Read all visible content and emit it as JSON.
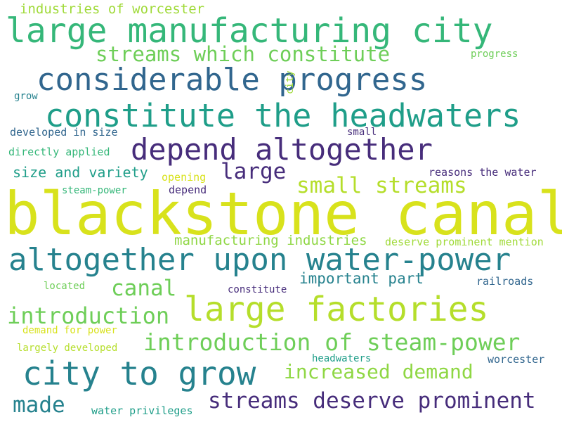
{
  "palette": {
    "dark_purple": "#472d7b",
    "deep_blue": "#31668e",
    "teal_blue": "#26828e",
    "teal": "#1f9e89",
    "green": "#35b779",
    "light_green": "#6ece58",
    "yellow_green": "#b5de2b",
    "yellow": "#d8e21c"
  },
  "words": [
    {
      "text": "blackstone canal",
      "color": "#d8e21c"
    },
    {
      "text": "large manufacturing city",
      "color": "#35b779"
    },
    {
      "text": "considerable progress",
      "color": "#31668e"
    },
    {
      "text": "constitute the headwaters",
      "color": "#1f9e89"
    },
    {
      "text": "depend altogether",
      "color": "#472d7b"
    },
    {
      "text": "altogether upon water-power",
      "color": "#26828e"
    },
    {
      "text": "large factories",
      "color": "#b5de2b"
    },
    {
      "text": "city to grow",
      "color": "#26828e"
    },
    {
      "text": "introduction of steam-power",
      "color": "#6ece58"
    },
    {
      "text": "streams deserve prominent",
      "color": "#472d7b"
    },
    {
      "text": "streams which constitute",
      "color": "#6ece58"
    },
    {
      "text": "introduction",
      "color": "#6ece58"
    },
    {
      "text": "small streams",
      "color": "#b5de2b"
    },
    {
      "text": "increased demand",
      "color": "#8fd744"
    },
    {
      "text": "large",
      "color": "#472d7b"
    },
    {
      "text": "canal",
      "color": "#6ece58"
    },
    {
      "text": "made",
      "color": "#26828e"
    },
    {
      "text": "industries of worcester",
      "color": "#a0da39"
    },
    {
      "text": "important part",
      "color": "#26828e"
    },
    {
      "text": "manufacturing industries",
      "color": "#8fd744"
    },
    {
      "text": "size and variety",
      "color": "#1f9e89"
    },
    {
      "text": "developed in size",
      "color": "#31668e"
    },
    {
      "text": "directly applied",
      "color": "#35b779"
    },
    {
      "text": "steam-power",
      "color": "#35b779"
    },
    {
      "text": "depend",
      "color": "#472d7b"
    },
    {
      "text": "opening",
      "color": "#d8e21c"
    },
    {
      "text": "deserve prominent mention",
      "color": "#a0da39"
    },
    {
      "text": "reasons the water",
      "color": "#472d7b"
    },
    {
      "text": "progress",
      "color": "#6ece58"
    },
    {
      "text": "grow",
      "color": "#26828e"
    },
    {
      "text": "small",
      "color": "#472d7b"
    },
    {
      "text": "located",
      "color": "#6ece58"
    },
    {
      "text": "constitute",
      "color": "#472d7b"
    },
    {
      "text": "railroads",
      "color": "#31668e"
    },
    {
      "text": "demand for power",
      "color": "#d8e21c"
    },
    {
      "text": "largely developed",
      "color": "#b5de2b"
    },
    {
      "text": "headwaters",
      "color": "#1f9e89"
    },
    {
      "text": "worcester",
      "color": "#31668e"
    },
    {
      "text": "water privileges",
      "color": "#1f9e89"
    },
    {
      "text": "city",
      "color": "#a0da39"
    }
  ]
}
